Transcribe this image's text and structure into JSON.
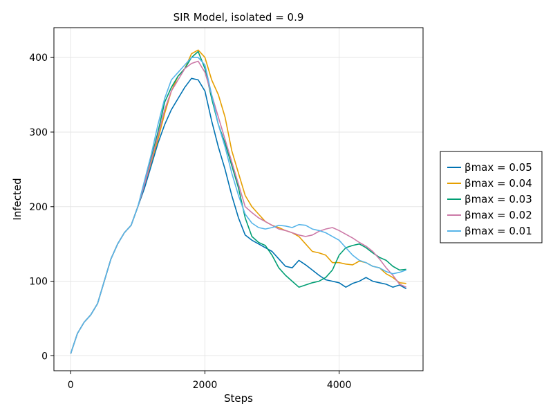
{
  "chart_data": {
    "type": "line",
    "title": "SIR Model, isolated = 0.9",
    "xlabel": "Steps",
    "ylabel": "Infected",
    "xlim": [
      -250,
      5250
    ],
    "ylim": [
      -20,
      440
    ],
    "xticks": [
      0,
      2000,
      4000
    ],
    "yticks": [
      0,
      100,
      200,
      300,
      400
    ],
    "xtick_labels": [
      "0",
      "2000",
      "4000"
    ],
    "ytick_labels": [
      "0",
      "100",
      "200",
      "300",
      "400"
    ],
    "grid": true,
    "legend_position": "right",
    "series": [
      {
        "name": "βmax = 0.05",
        "color": "#0072b2",
        "x": [
          0,
          100,
          200,
          300,
          400,
          500,
          600,
          700,
          800,
          900,
          1000,
          1100,
          1200,
          1300,
          1400,
          1500,
          1600,
          1700,
          1800,
          1900,
          2000,
          2100,
          2200,
          2300,
          2400,
          2500,
          2600,
          2700,
          2800,
          2900,
          3000,
          3100,
          3200,
          3300,
          3400,
          3500,
          3600,
          3700,
          3800,
          3900,
          4000,
          4100,
          4200,
          4300,
          4400,
          4500,
          4600,
          4700,
          4800,
          4900,
          5000
        ],
        "y": [
          3,
          30,
          45,
          55,
          70,
          100,
          130,
          150,
          165,
          175,
          200,
          225,
          255,
          285,
          310,
          330,
          345,
          360,
          372,
          370,
          355,
          315,
          280,
          250,
          215,
          185,
          162,
          155,
          150,
          145,
          140,
          130,
          120,
          118,
          128,
          122,
          115,
          108,
          102,
          100,
          98,
          92,
          97,
          100,
          105,
          100,
          98,
          96,
          92,
          95,
          90
        ]
      },
      {
        "name": "βmax = 0.04",
        "color": "#e69f00",
        "x": [
          0,
          100,
          200,
          300,
          400,
          500,
          600,
          700,
          800,
          900,
          1000,
          1100,
          1200,
          1300,
          1400,
          1500,
          1600,
          1700,
          1800,
          1900,
          2000,
          2100,
          2200,
          2300,
          2400,
          2500,
          2600,
          2700,
          2800,
          2900,
          3000,
          3100,
          3200,
          3300,
          3400,
          3500,
          3600,
          3700,
          3800,
          3900,
          4000,
          4100,
          4200,
          4300,
          4400,
          4500,
          4600,
          4700,
          4800,
          4900,
          5000
        ],
        "y": [
          3,
          30,
          45,
          55,
          70,
          100,
          130,
          150,
          165,
          175,
          200,
          230,
          260,
          290,
          325,
          355,
          375,
          385,
          405,
          410,
          400,
          370,
          350,
          320,
          275,
          245,
          215,
          200,
          190,
          180,
          175,
          172,
          168,
          165,
          160,
          150,
          140,
          138,
          135,
          125,
          125,
          123,
          122,
          127,
          125,
          120,
          118,
          110,
          105,
          98,
          97
        ]
      },
      {
        "name": "βmax = 0.03",
        "color": "#009e73",
        "x": [
          0,
          100,
          200,
          300,
          400,
          500,
          600,
          700,
          800,
          900,
          1000,
          1100,
          1200,
          1300,
          1400,
          1500,
          1600,
          1700,
          1800,
          1900,
          2000,
          2100,
          2200,
          2300,
          2400,
          2500,
          2600,
          2700,
          2800,
          2900,
          3000,
          3100,
          3200,
          3300,
          3400,
          3500,
          3600,
          3700,
          3800,
          3900,
          4000,
          4100,
          4200,
          4300,
          4400,
          4500,
          4600,
          4700,
          4800,
          4900,
          5000
        ],
        "y": [
          3,
          30,
          45,
          55,
          70,
          100,
          130,
          150,
          165,
          175,
          200,
          230,
          265,
          300,
          340,
          360,
          375,
          385,
          400,
          408,
          385,
          345,
          310,
          285,
          255,
          225,
          185,
          160,
          152,
          148,
          135,
          118,
          108,
          100,
          92,
          95,
          98,
          100,
          105,
          115,
          135,
          145,
          148,
          150,
          145,
          138,
          132,
          128,
          120,
          115,
          116
        ]
      },
      {
        "name": "βmax = 0.02",
        "color": "#cc79a7",
        "x": [
          0,
          100,
          200,
          300,
          400,
          500,
          600,
          700,
          800,
          900,
          1000,
          1100,
          1200,
          1300,
          1400,
          1500,
          1600,
          1700,
          1800,
          1900,
          2000,
          2100,
          2200,
          2300,
          2400,
          2500,
          2600,
          2700,
          2800,
          2900,
          3000,
          3100,
          3200,
          3300,
          3400,
          3500,
          3600,
          3700,
          3800,
          3900,
          4000,
          4100,
          4200,
          4300,
          4400,
          4500,
          4600,
          4700,
          4800,
          4900,
          5000
        ],
        "y": [
          3,
          30,
          45,
          55,
          70,
          100,
          130,
          150,
          165,
          175,
          200,
          230,
          262,
          295,
          330,
          355,
          370,
          385,
          392,
          395,
          380,
          350,
          320,
          290,
          260,
          230,
          200,
          192,
          185,
          180,
          175,
          170,
          168,
          165,
          162,
          160,
          162,
          167,
          170,
          172,
          168,
          163,
          158,
          152,
          147,
          140,
          130,
          118,
          108,
          96,
          92
        ]
      },
      {
        "name": "βmax = 0.01",
        "color": "#56b4e9",
        "x": [
          0,
          100,
          200,
          300,
          400,
          500,
          600,
          700,
          800,
          900,
          1000,
          1100,
          1200,
          1300,
          1400,
          1500,
          1600,
          1700,
          1800,
          1900,
          2000,
          2100,
          2200,
          2300,
          2400,
          2500,
          2600,
          2700,
          2800,
          2900,
          3000,
          3100,
          3200,
          3300,
          3400,
          3500,
          3600,
          3700,
          3800,
          3900,
          4000,
          4100,
          4200,
          4300,
          4400,
          4500,
          4600,
          4700,
          4800,
          4900,
          5000
        ],
        "y": [
          3,
          30,
          45,
          55,
          70,
          100,
          130,
          150,
          165,
          175,
          200,
          235,
          270,
          310,
          345,
          370,
          380,
          390,
          400,
          400,
          390,
          350,
          310,
          280,
          245,
          215,
          190,
          178,
          172,
          170,
          172,
          175,
          174,
          172,
          176,
          175,
          170,
          168,
          165,
          160,
          155,
          145,
          135,
          128,
          125,
          120,
          118,
          113,
          110,
          112,
          115
        ]
      }
    ]
  }
}
